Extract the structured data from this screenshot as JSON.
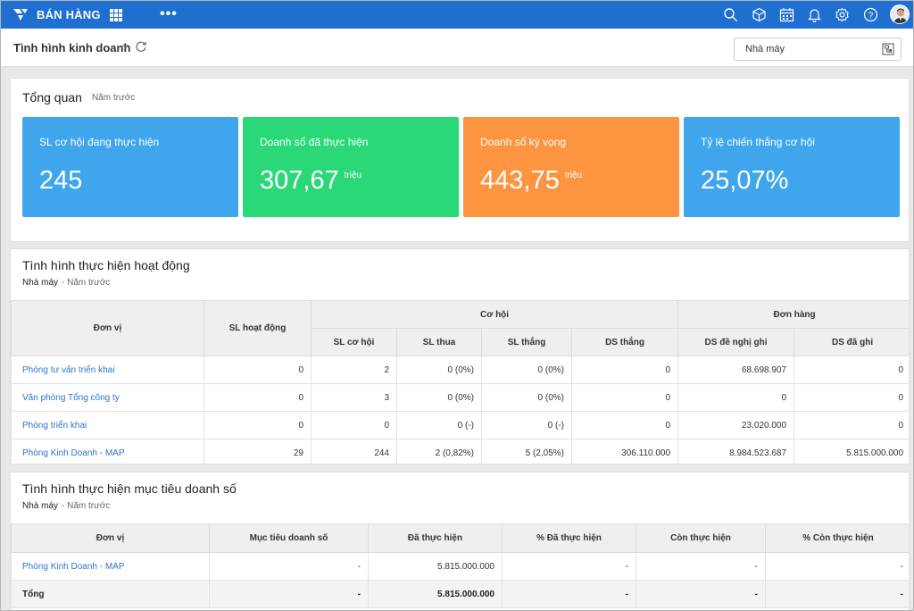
{
  "app": {
    "title": "BÁN HÀNG"
  },
  "subheader": {
    "title": "Tình hình kinh doanh",
    "select_value": "Nhà máy"
  },
  "overview": {
    "title": "Tổng quan",
    "period": "Năm trước",
    "kpis": [
      {
        "label": "SL cơ hội đang thực hiện",
        "value": "245",
        "unit": "",
        "color": "#3fa6ee"
      },
      {
        "label": "Doanh số đã thực hiện",
        "value": "307,67",
        "unit": "triệu",
        "color": "#2bd878"
      },
      {
        "label": "Doanh số kỳ vọng",
        "value": "443,75",
        "unit": "triệu",
        "color": "#fd9440"
      },
      {
        "label": "Tỷ lệ chiến thắng cơ hội",
        "value": "25,07%",
        "unit": "",
        "color": "#3fa6ee"
      }
    ]
  },
  "activity": {
    "title": "Tình hình thực hiện hoạt động",
    "filter": "Nhà máy",
    "period": "- Năm trước",
    "headers": {
      "unit": "Đơn vị",
      "activities": "SL hoạt động",
      "opportunity": "Cơ hội",
      "order": "Đơn hàng",
      "opp_count": "SL cơ hội",
      "lost": "SL thua",
      "won": "SL thắng",
      "ds_won": "DS thắng",
      "ds_proposed": "DS đề nghị ghi",
      "ds_recorded": "DS đã ghi"
    },
    "rows": [
      {
        "unit": "Phòng tư vấn triển khai",
        "activities": "0",
        "opp_count": "2",
        "lost": "0 (0%)",
        "won": "0 (0%)",
        "ds_won": "0",
        "ds_proposed": "68.698.907",
        "ds_recorded": "0"
      },
      {
        "unit": "Văn phòng Tổng công ty",
        "activities": "0",
        "opp_count": "3",
        "lost": "0 (0%)",
        "won": "0 (0%)",
        "ds_won": "0",
        "ds_proposed": "0",
        "ds_recorded": "0"
      },
      {
        "unit": "Phòng triển khai",
        "activities": "0",
        "opp_count": "0",
        "lost": "0 (-)",
        "won": "0 (-)",
        "ds_won": "0",
        "ds_proposed": "23.020.000",
        "ds_recorded": "0"
      },
      {
        "unit": "Phòng Kinh Doanh - MAP",
        "activities": "29",
        "opp_count": "244",
        "lost": "2 (0,82%)",
        "won": "5 (2,05%)",
        "ds_won": "306.110.000",
        "ds_proposed": "8.984.523.687",
        "ds_recorded": "5.815.000.000"
      }
    ]
  },
  "target": {
    "title": "Tình hình thực hiện mục tiêu doanh số",
    "filter": "Nhà máy",
    "period": "- Năm trước",
    "headers": {
      "unit": "Đơn vị",
      "target": "Mục tiêu doanh số",
      "done": "Đã thực hiện",
      "done_pct": "% Đã thực hiện",
      "remaining": "Còn thực hiện",
      "remaining_pct": "% Còn thực hiện"
    },
    "rows": [
      {
        "unit": "Phòng Kinh Doanh - MAP",
        "target": "-",
        "done": "5.815.000.000",
        "done_pct": "-",
        "remaining": "-",
        "remaining_pct": "-"
      }
    ],
    "total": {
      "unit": "Tổng",
      "target": "-",
      "done": "5.815.000.000",
      "done_pct": "-",
      "remaining": "-",
      "remaining_pct": "-"
    }
  }
}
